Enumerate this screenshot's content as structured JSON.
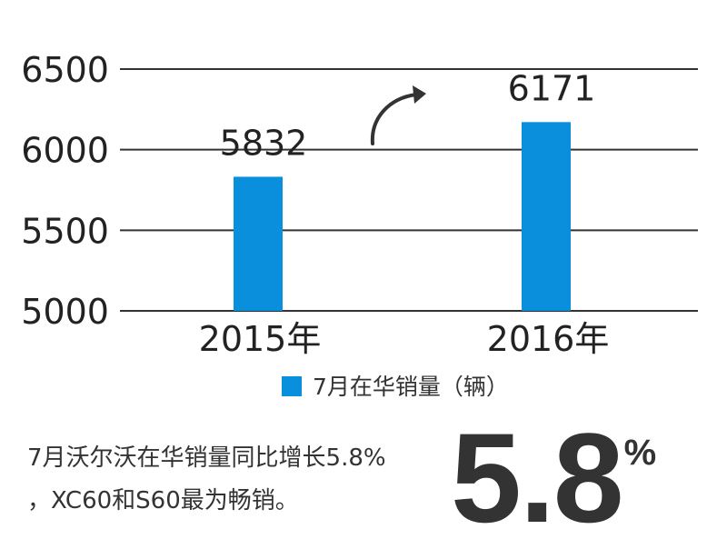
{
  "chart_data": {
    "type": "bar",
    "categories": [
      "2015年",
      "2016年"
    ],
    "series": [
      {
        "name": "7月在华销量（辆）",
        "values": [
          5832,
          6171
        ]
      }
    ],
    "data_labels": [
      "5832",
      "6171"
    ],
    "yticks": [
      5000,
      5500,
      6000,
      6500
    ],
    "ylim": [
      5000,
      6500
    ],
    "grid": true,
    "legend": "bottom-center",
    "title": "",
    "xlabel": "",
    "ylabel": "",
    "color": "#0a8fdc"
  },
  "description": {
    "line1": "7月沃尔沃在华销量同比增长5.8%",
    "line2": "，XC60和S60最为畅销。"
  },
  "highlight": {
    "value": "5.8",
    "unit": "%"
  },
  "trend_icon": "curved-arrow-up-right-icon"
}
